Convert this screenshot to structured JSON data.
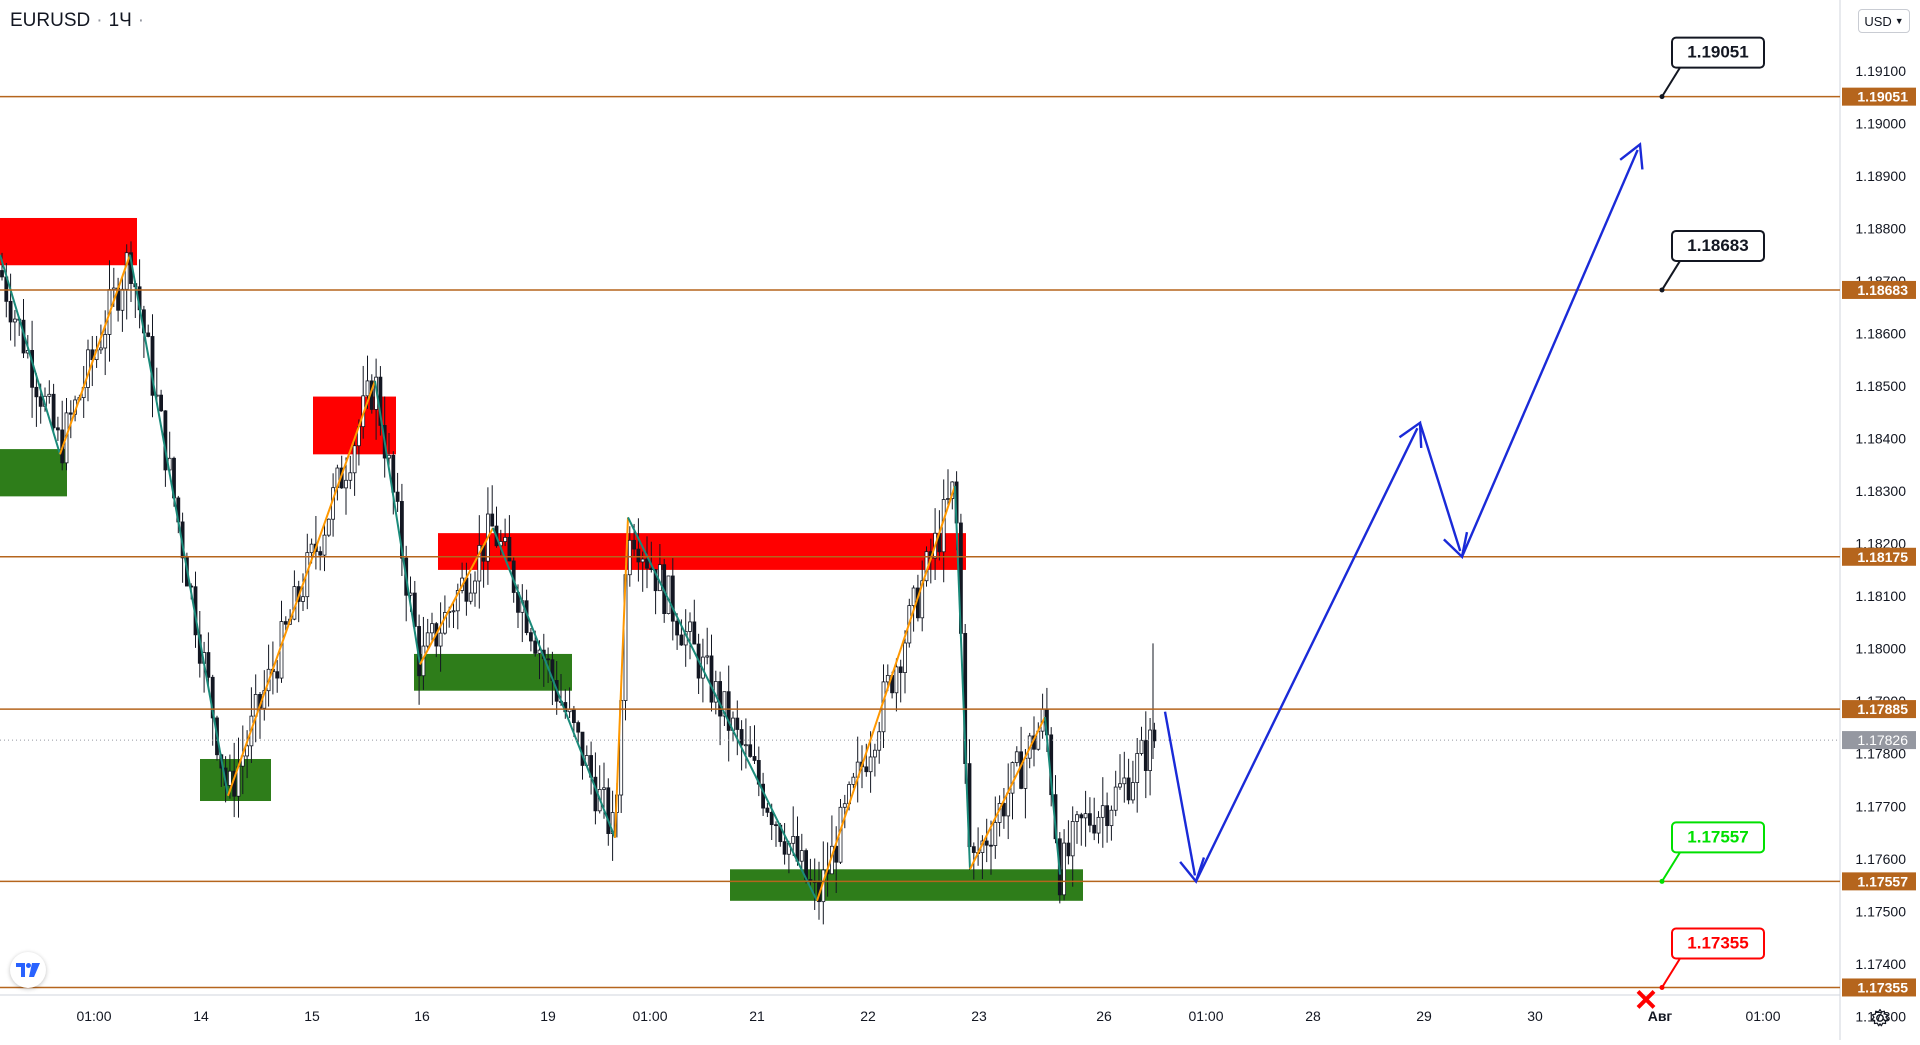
{
  "header": {
    "symbol": "EURUSD",
    "interval": "1Ч",
    "separator": "·",
    "currency_button": "USD"
  },
  "colors": {
    "level_line": "#b5651d",
    "level_tag_bg": "#b5651d",
    "resistance_zone": "#ff0000",
    "support_zone": "#2e7d1a",
    "wave_teal": "#1a8a7a",
    "wave_orange": "#ff9800",
    "forecast_arrow": "#1a2ad8",
    "candle": "#131722",
    "current_price_tag": "#9598a1",
    "callout_green": "#00e000",
    "callout_red": "#ff0000"
  },
  "chart_data": {
    "type": "candlestick",
    "symbol": "EURUSD",
    "interval": "1Ч",
    "ylim": [
      1.17255,
      1.19235
    ],
    "y_ticks": [
      "1.17300",
      "1.17400",
      "1.17500",
      "1.17600",
      "1.17700",
      "1.17800",
      "1.17900",
      "1.18000",
      "1.18100",
      "1.18200",
      "1.18300",
      "1.18400",
      "1.18500",
      "1.18600",
      "1.18700",
      "1.18800",
      "1.18900",
      "1.19000",
      "1.19100"
    ],
    "x_ticks": [
      "01:00",
      "14",
      "15",
      "16",
      "19",
      "01:00",
      "21",
      "22",
      "23",
      "26",
      "01:00",
      "28",
      "29",
      "30",
      "Авг",
      "01:00"
    ],
    "current_price": "1.17826",
    "levels": [
      {
        "label": "1.19051",
        "value": 1.19051,
        "callout": "1.19051",
        "callout_style": "black"
      },
      {
        "label": "1.18683",
        "value": 1.18683,
        "callout": "1.18683",
        "callout_style": "black"
      },
      {
        "label": "1.18175",
        "value": 1.18175
      },
      {
        "label": "1.17885",
        "value": 1.17885
      },
      {
        "label": "1.17557",
        "value": 1.17557,
        "callout": "1.17557",
        "callout_style": "green"
      },
      {
        "label": "1.17355",
        "value": 1.17355,
        "callout": "1.17355",
        "callout_style": "red",
        "marker": "cross"
      }
    ],
    "zones": [
      {
        "kind": "resistance",
        "price_top": 1.1882,
        "price_bottom": 1.1873
      },
      {
        "kind": "resistance",
        "price_top": 1.1848,
        "price_bottom": 1.1837
      },
      {
        "kind": "resistance",
        "price_top": 1.1822,
        "price_bottom": 1.1815
      },
      {
        "kind": "support",
        "price_top": 1.1838,
        "price_bottom": 1.1829
      },
      {
        "kind": "support",
        "price_top": 1.1779,
        "price_bottom": 1.1771
      },
      {
        "kind": "support",
        "price_top": 1.1799,
        "price_bottom": 1.1792
      },
      {
        "kind": "support",
        "price_top": 1.1758,
        "price_bottom": 1.1752
      }
    ],
    "wave_paths": [
      {
        "color": "teal",
        "prices": [
          1.1875,
          1.1837
        ]
      },
      {
        "color": "orange",
        "prices": [
          1.1837,
          1.1875
        ]
      },
      {
        "color": "teal",
        "prices": [
          1.1875,
          1.1772
        ]
      },
      {
        "color": "orange",
        "prices": [
          1.1772,
          1.1851
        ]
      },
      {
        "color": "teal",
        "prices": [
          1.1851,
          1.1797
        ]
      },
      {
        "color": "orange",
        "prices": [
          1.1797,
          1.1823
        ]
      },
      {
        "color": "teal",
        "prices": [
          1.1823,
          1.1764
        ]
      },
      {
        "color": "orange",
        "prices": [
          1.1764,
          1.1825
        ]
      },
      {
        "color": "teal",
        "prices": [
          1.1825,
          1.1752
        ]
      },
      {
        "color": "orange",
        "prices": [
          1.1752,
          1.1831
        ]
      },
      {
        "color": "teal",
        "prices": [
          1.1831,
          1.1758
        ]
      },
      {
        "color": "orange",
        "prices": [
          1.1758,
          1.1787
        ]
      },
      {
        "color": "teal",
        "prices": [
          1.1787,
          1.1757
        ]
      }
    ],
    "forecast_path": [
      1.1788,
      1.17557,
      1.1843,
      1.18175,
      1.1896
    ]
  }
}
